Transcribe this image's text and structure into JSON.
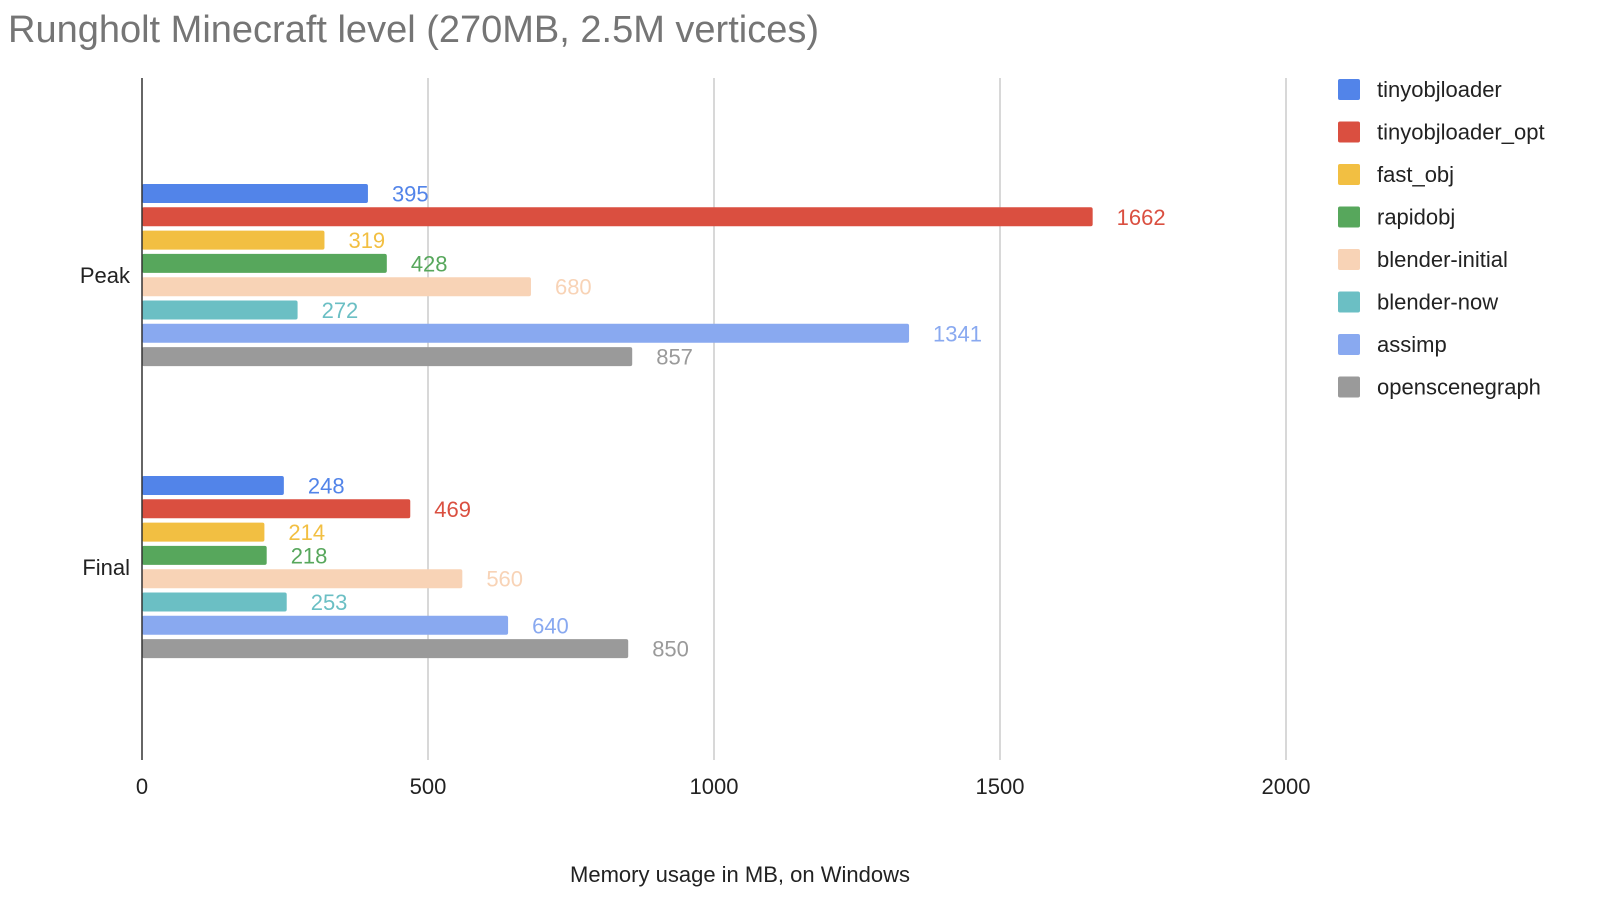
{
  "chart_data": {
    "type": "bar",
    "orientation": "horizontal",
    "title": "Rungholt Minecraft level (270MB, 2.5M vertices)",
    "xlabel": "Memory usage in MB, on Windows",
    "ylabel": "",
    "xlim": [
      0,
      2200
    ],
    "xticks": [
      0,
      500,
      1000,
      1500,
      2000
    ],
    "categories": [
      "Peak",
      "Final"
    ],
    "grid": true,
    "legend_position": "right",
    "series": [
      {
        "name": "tinyobjloader",
        "color": "#5284E9",
        "values": [
          395,
          248
        ]
      },
      {
        "name": "tinyobjloader_opt",
        "color": "#DA4F40",
        "values": [
          1662,
          469
        ]
      },
      {
        "name": "fast_obj",
        "color": "#F2BF42",
        "values": [
          319,
          214
        ]
      },
      {
        "name": "rapidobj",
        "color": "#57A75C",
        "values": [
          428,
          218
        ]
      },
      {
        "name": "blender-initial",
        "color": "#F8D3B6",
        "values": [
          680,
          560
        ]
      },
      {
        "name": "blender-now",
        "color": "#6BBFC4",
        "values": [
          272,
          253
        ]
      },
      {
        "name": "assimp",
        "color": "#89A9F0",
        "values": [
          1341,
          640
        ]
      },
      {
        "name": "openscenegraph",
        "color": "#9A9A9A",
        "values": [
          857,
          850
        ]
      }
    ]
  }
}
